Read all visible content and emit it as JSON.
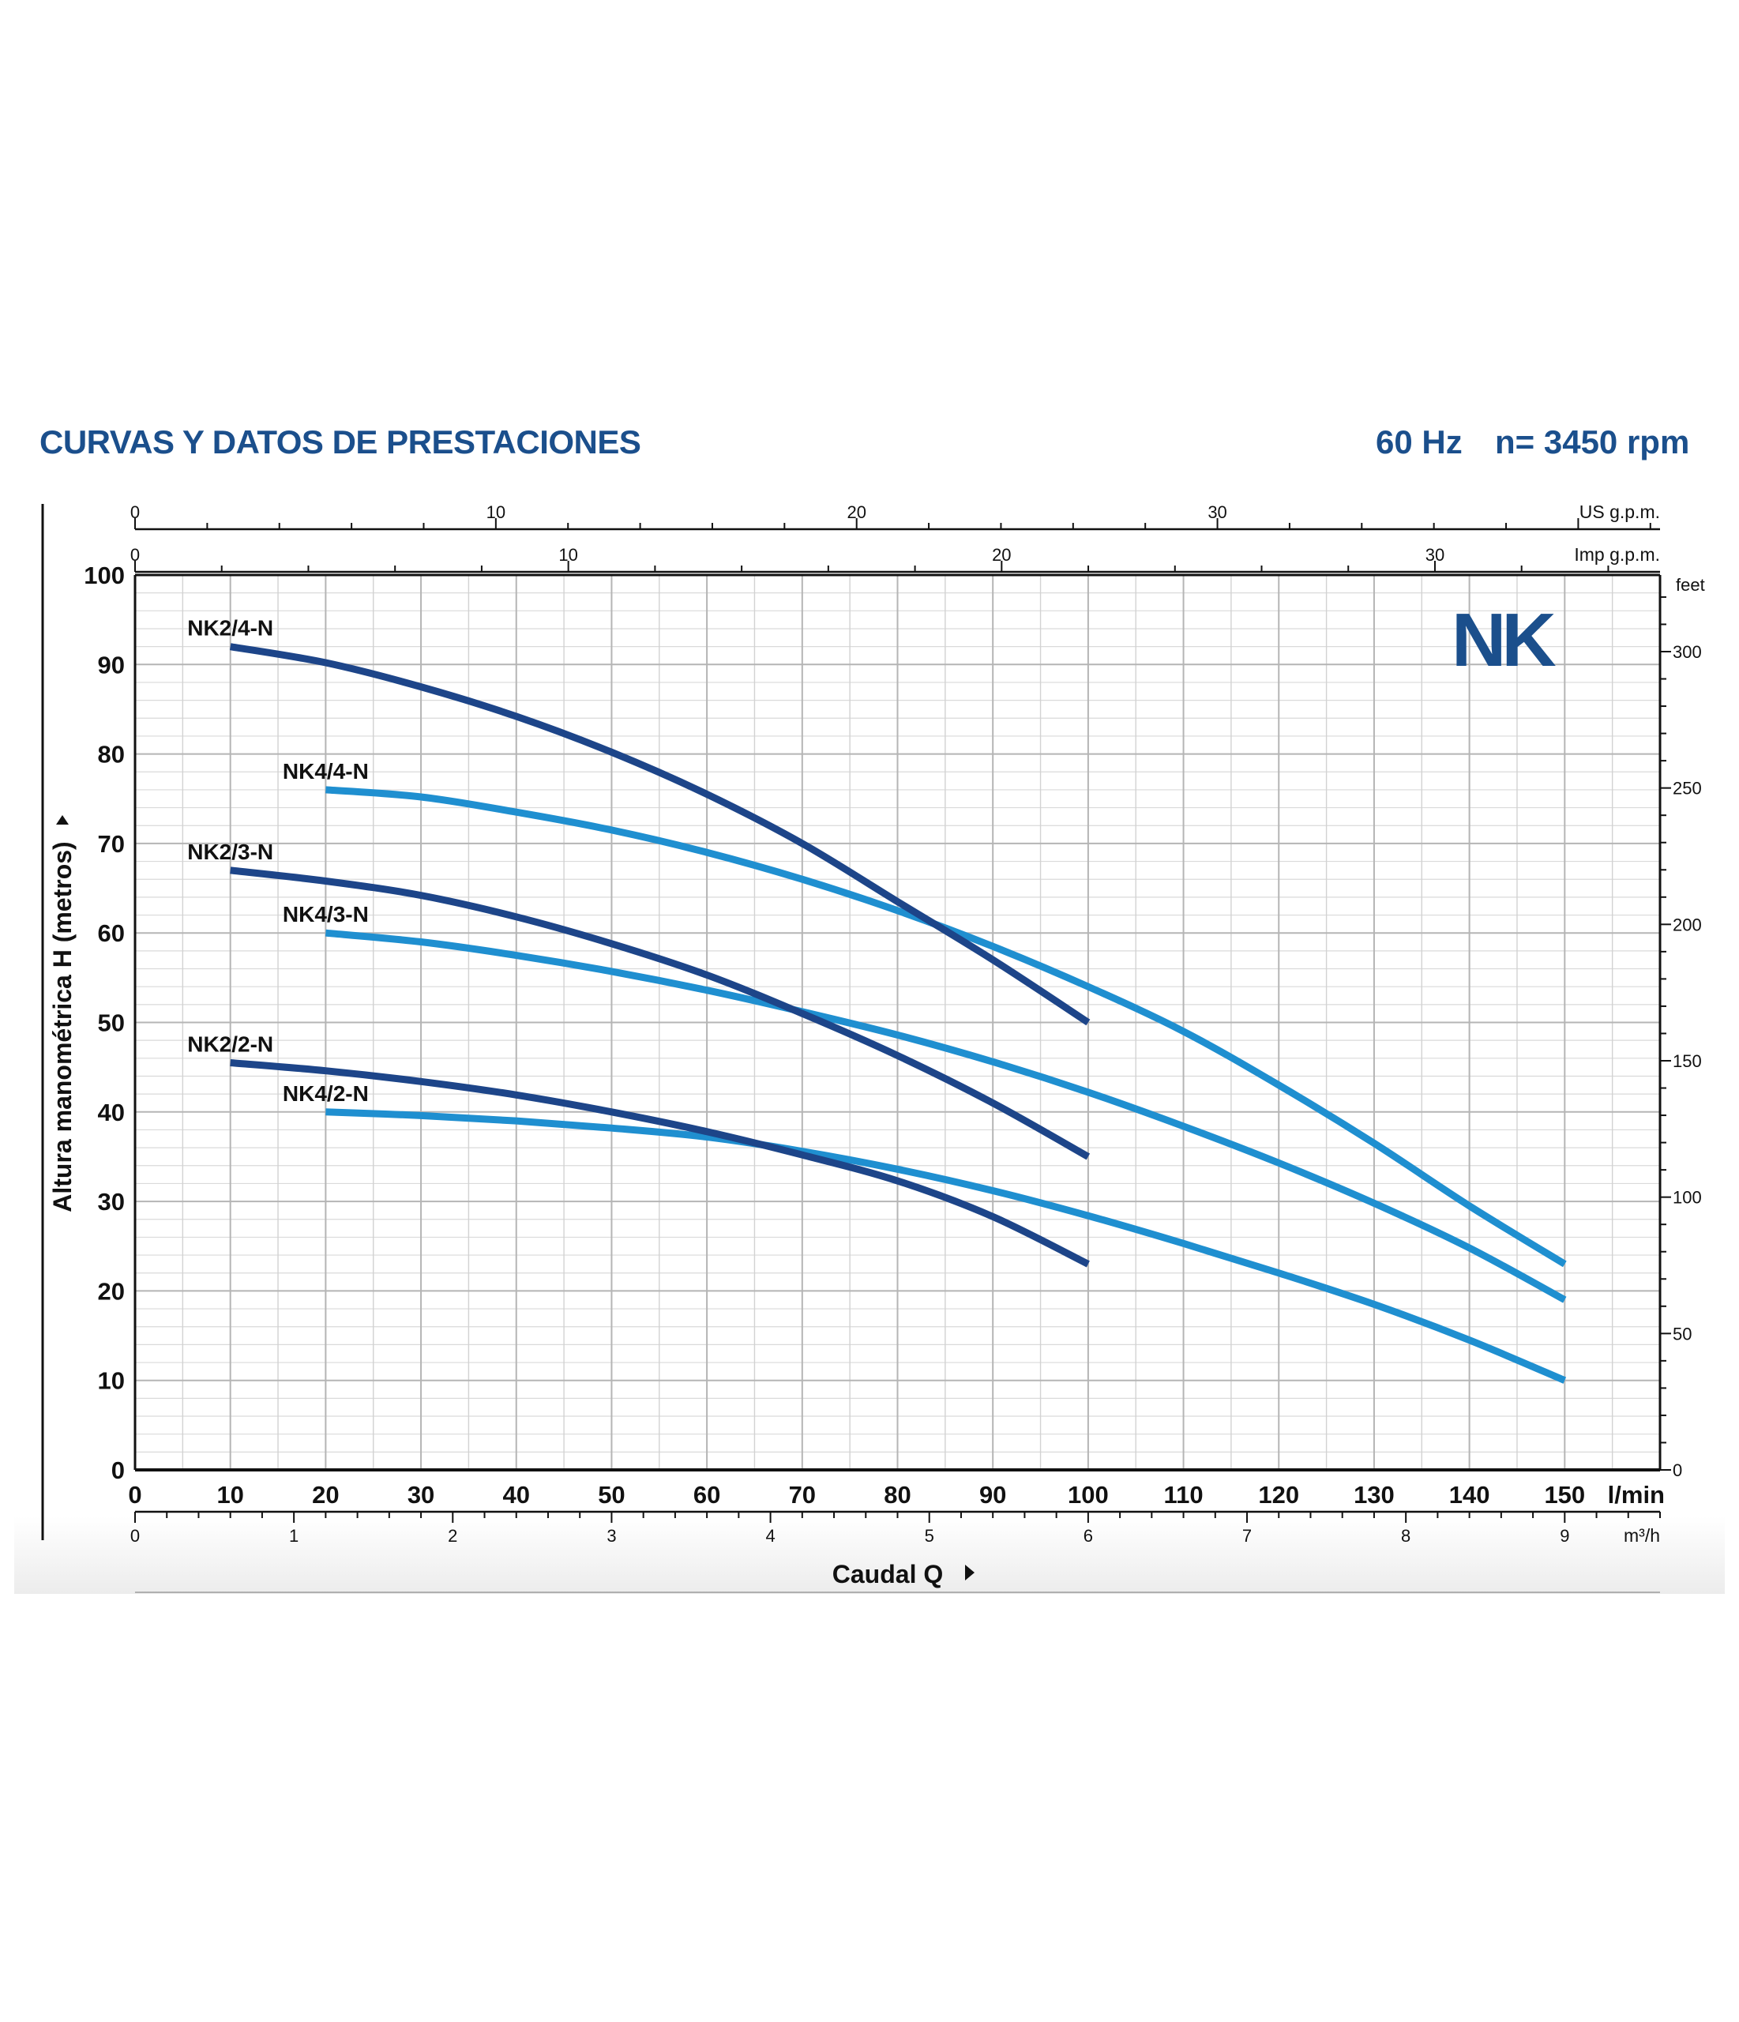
{
  "header": {
    "title": "CURVAS Y DATOS DE PRESTACIONES",
    "frequency": "60 Hz",
    "speed": "n= 3450 rpm"
  },
  "logo_text": "NK",
  "colors": {
    "title": "#1b4f8c",
    "dark_curve": "#1d4589",
    "light_curve": "#1f8fd0",
    "grid": "#c9c9c9",
    "axis": "#111111",
    "logo": "#1b4f8c"
  },
  "chart_data": {
    "type": "line",
    "ylabel": "Altura manométrica H (metros)",
    "xlabel": "Caudal Q",
    "x_unit": "l/min",
    "y_unit": "m",
    "xlim": [
      0,
      160
    ],
    "ylim": [
      0,
      100
    ],
    "grid": true,
    "x_ticks": [
      0,
      10,
      20,
      30,
      40,
      50,
      60,
      70,
      80,
      90,
      100,
      110,
      120,
      130,
      140,
      150
    ],
    "y_ticks": [
      0,
      10,
      20,
      30,
      40,
      50,
      60,
      70,
      80,
      90,
      100
    ],
    "secondary_axes": {
      "us_gpm": {
        "label": "US g.p.m.",
        "ticks": [
          0,
          10,
          20,
          30
        ]
      },
      "imp_gpm": {
        "label": "Imp g.p.m.",
        "ticks": [
          0,
          10,
          20,
          30
        ]
      },
      "m3h": {
        "label": "m³/h",
        "ticks": [
          0,
          1,
          2,
          3,
          4,
          5,
          6,
          7,
          8,
          9
        ]
      },
      "feet": {
        "label": "feet",
        "ticks": [
          0,
          50,
          100,
          150,
          200,
          250,
          300
        ]
      }
    },
    "series": [
      {
        "name": "NK2/4-N",
        "style": "dark",
        "x": [
          10,
          20,
          30,
          40,
          50,
          60,
          70,
          80,
          90,
          100
        ],
        "y": [
          92,
          90.2,
          87.5,
          84.2,
          80.2,
          75.5,
          70,
          63.5,
          57,
          50
        ]
      },
      {
        "name": "NK4/4-N",
        "style": "light",
        "x": [
          20,
          30,
          40,
          50,
          60,
          70,
          80,
          90,
          100,
          110,
          120,
          130,
          140,
          150
        ],
        "y": [
          76,
          75.2,
          73.5,
          71.5,
          69,
          66,
          62.5,
          58.5,
          54,
          49,
          43,
          36.5,
          29.5,
          23
        ]
      },
      {
        "name": "NK2/3-N",
        "style": "dark",
        "x": [
          10,
          20,
          30,
          40,
          50,
          60,
          70,
          80,
          90,
          100
        ],
        "y": [
          67,
          65.8,
          64.2,
          61.8,
          58.8,
          55.3,
          51,
          46.3,
          41,
          35
        ]
      },
      {
        "name": "NK4/3-N",
        "style": "light",
        "x": [
          20,
          30,
          40,
          50,
          60,
          70,
          80,
          90,
          100,
          110,
          120,
          130,
          140,
          150
        ],
        "y": [
          60,
          59,
          57.5,
          55.7,
          53.6,
          51.2,
          48.6,
          45.6,
          42.2,
          38.4,
          34.3,
          29.8,
          24.8,
          19
        ]
      },
      {
        "name": "NK2/2-N",
        "style": "dark",
        "x": [
          10,
          20,
          30,
          40,
          50,
          60,
          70,
          80,
          90,
          100
        ],
        "y": [
          45.5,
          44.6,
          43.4,
          41.9,
          40,
          37.8,
          35.2,
          32.3,
          28.3,
          23
        ]
      },
      {
        "name": "NK4/2-N",
        "style": "light",
        "x": [
          20,
          30,
          40,
          50,
          60,
          70,
          80,
          90,
          100,
          110,
          120,
          130,
          140,
          150
        ],
        "y": [
          40,
          39.6,
          39,
          38.2,
          37.2,
          35.6,
          33.6,
          31.2,
          28.4,
          25.3,
          22,
          18.5,
          14.5,
          10
        ]
      }
    ]
  }
}
